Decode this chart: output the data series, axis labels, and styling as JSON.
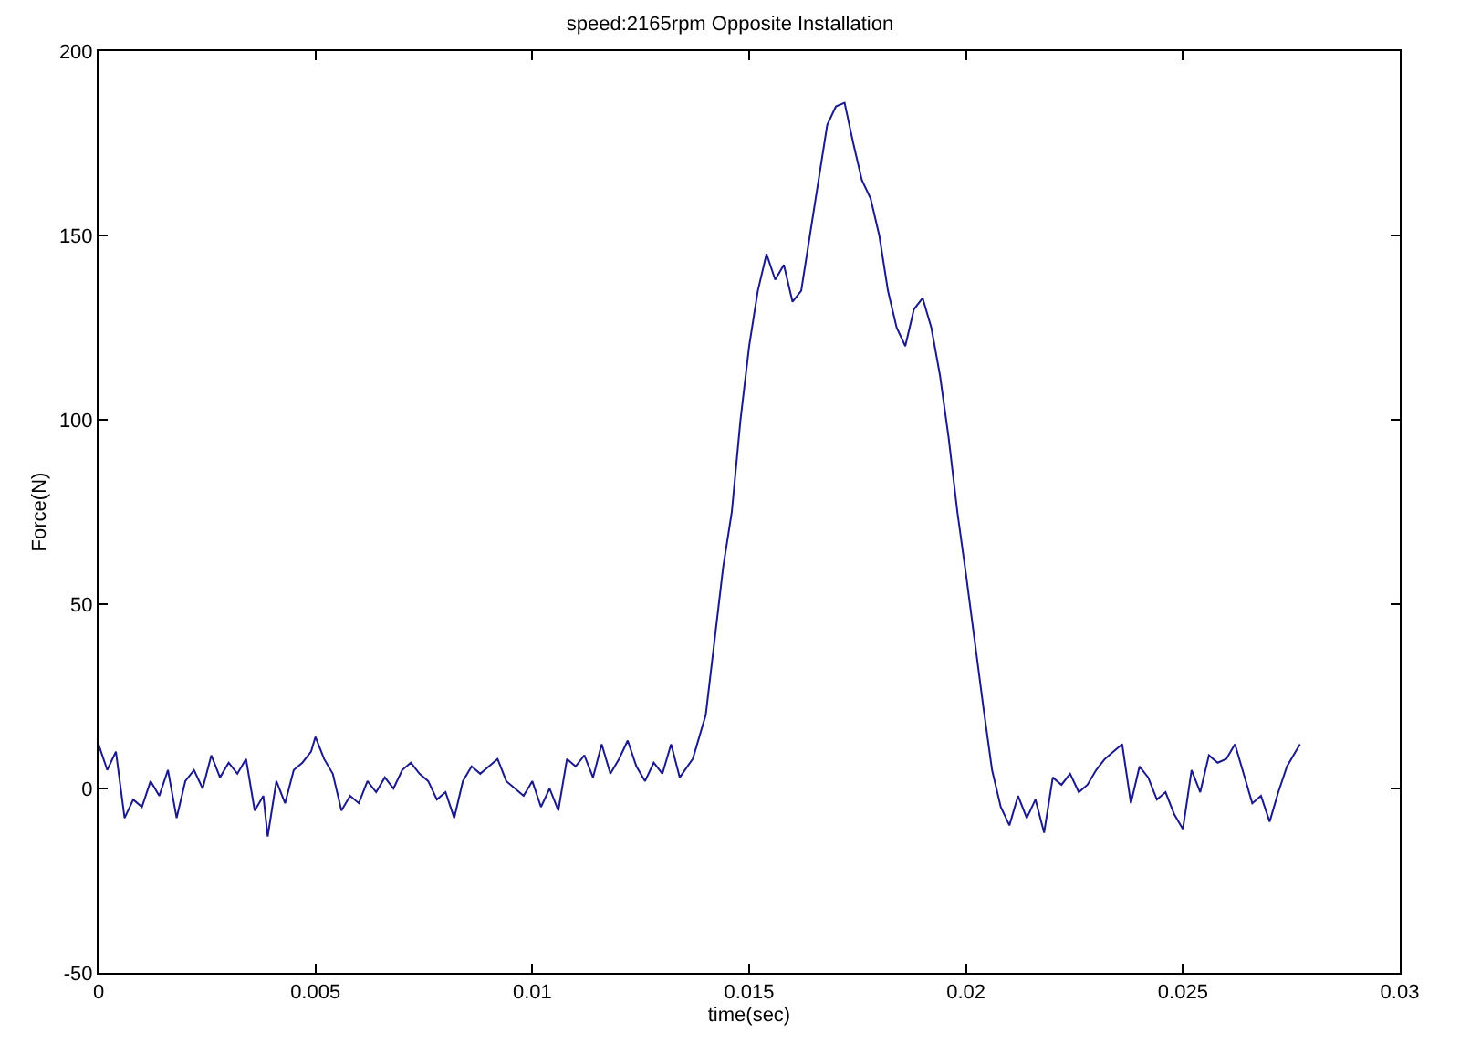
{
  "chart_data": {
    "type": "line",
    "title": "speed:2165rpm Opposite Installation",
    "xlabel": "time(sec)",
    "ylabel": "Force(N)",
    "x": [
      0,
      0.0002,
      0.0004,
      0.0006,
      0.0008,
      0.001,
      0.0012,
      0.0014,
      0.0016,
      0.0018,
      0.002,
      0.0022,
      0.0024,
      0.0026,
      0.0028,
      0.003,
      0.0032,
      0.0034,
      0.0036,
      0.0038,
      0.0039,
      0.0041,
      0.0043,
      0.0045,
      0.0047,
      0.0049,
      0.005,
      0.0052,
      0.0054,
      0.0056,
      0.0058,
      0.006,
      0.0062,
      0.0064,
      0.0066,
      0.0068,
      0.007,
      0.0072,
      0.0074,
      0.0076,
      0.0078,
      0.008,
      0.0082,
      0.0084,
      0.0086,
      0.0088,
      0.009,
      0.0092,
      0.0094,
      0.0096,
      0.0098,
      0.01,
      0.0102,
      0.0104,
      0.0106,
      0.0108,
      0.011,
      0.0112,
      0.0114,
      0.0116,
      0.0118,
      0.012,
      0.0122,
      0.0124,
      0.0126,
      0.0128,
      0.013,
      0.0132,
      0.0134,
      0.0137,
      0.014,
      0.0142,
      0.0144,
      0.0146,
      0.0148,
      0.015,
      0.0152,
      0.0154,
      0.0156,
      0.0158,
      0.016,
      0.0162,
      0.0164,
      0.0166,
      0.0168,
      0.017,
      0.0172,
      0.0174,
      0.0176,
      0.0178,
      0.018,
      0.0182,
      0.0184,
      0.0186,
      0.0188,
      0.019,
      0.0192,
      0.0194,
      0.0196,
      0.0198,
      0.02,
      0.0202,
      0.0204,
      0.0206,
      0.0208,
      0.021,
      0.0212,
      0.0214,
      0.0216,
      0.0218,
      0.022,
      0.0222,
      0.0224,
      0.0226,
      0.0228,
      0.023,
      0.0232,
      0.0234,
      0.0236,
      0.0238,
      0.024,
      0.0242,
      0.0244,
      0.0246,
      0.0248,
      0.025,
      0.0252,
      0.0254,
      0.0256,
      0.0258,
      0.026,
      0.0262,
      0.0264,
      0.0266,
      0.0268,
      0.027,
      0.0272,
      0.0274,
      0.0276,
      0.0277
    ],
    "series": [
      {
        "color": "#1a1a8c",
        "values": [
          12,
          5,
          10,
          -8,
          -3,
          -5,
          2,
          -2,
          5,
          -8,
          2,
          5,
          0,
          9,
          3,
          7,
          4,
          8,
          -6,
          -2,
          -13,
          2,
          -4,
          5,
          7,
          10,
          14,
          8,
          4,
          -6,
          -2,
          -4,
          2,
          -1,
          3,
          0,
          5,
          7,
          4,
          2,
          -3,
          -1,
          -8,
          2,
          6,
          4,
          6,
          8,
          2,
          0,
          -2,
          2,
          -5,
          0,
          -6,
          8,
          6,
          9,
          3,
          12,
          4,
          8,
          13,
          6,
          2,
          7,
          4,
          12,
          3,
          8,
          20,
          40,
          60,
          75,
          100,
          120,
          135,
          145,
          138,
          142,
          132,
          135,
          150,
          165,
          180,
          185,
          186,
          175,
          165,
          160,
          150,
          135,
          125,
          120,
          130,
          133,
          125,
          112,
          95,
          75,
          58,
          40,
          22,
          5,
          -5,
          -10,
          -2,
          -8,
          -3,
          -12,
          3,
          1,
          4,
          -1,
          1,
          5,
          8,
          10,
          12,
          -4,
          6,
          3,
          -3,
          -1,
          -7,
          -11,
          5,
          -1,
          9,
          7,
          8,
          12,
          4,
          -4,
          -2,
          -9,
          -1,
          6,
          10,
          12
        ]
      }
    ],
    "xlim": [
      0,
      0.03
    ],
    "xticks": [
      0,
      0.005,
      0.01,
      0.015,
      0.02,
      0.025,
      0.03
    ],
    "ylim": [
      -50,
      200
    ],
    "yticks": [
      -50,
      0,
      50,
      100,
      150,
      200
    ],
    "grid": false,
    "line_style": "solid",
    "marker": "none"
  }
}
